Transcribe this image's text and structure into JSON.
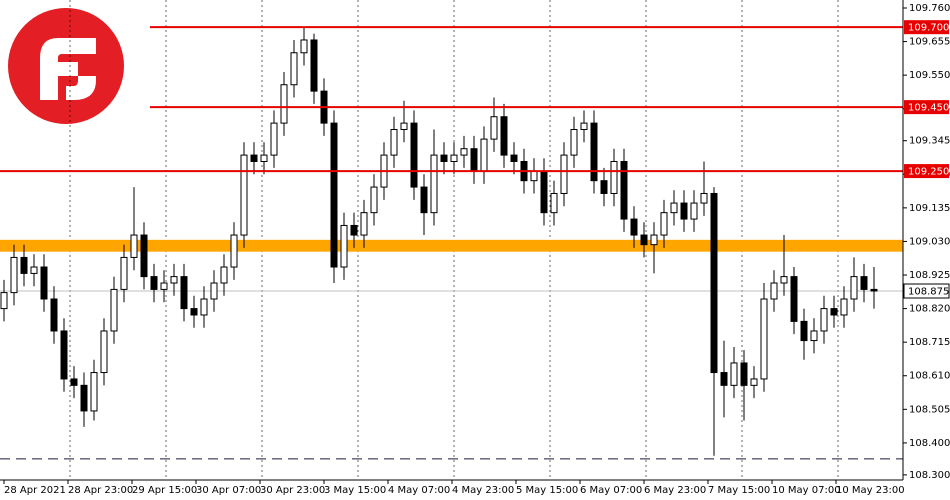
{
  "chart_data": {
    "type": "candlestick",
    "x_labels": [
      "28 Apr 2021",
      "28 Apr 23:00",
      "29 Apr 15:00",
      "30 Apr 07:00",
      "30 Apr 23:00",
      "3 May 15:00",
      "4 May 07:00",
      "4 May 23:00",
      "5 May 15:00",
      "6 May 07:00",
      "6 May 23:00",
      "7 May 15:00",
      "10 May 07:00",
      "10 May 23:00"
    ],
    "open": [
      108.82,
      108.87,
      108.98,
      108.93,
      108.95,
      108.85,
      108.75,
      108.6,
      108.58,
      108.5,
      108.62,
      108.75,
      108.88,
      108.98,
      109.05,
      108.92,
      108.88,
      108.9,
      108.92,
      108.82,
      108.8,
      108.85,
      108.9,
      108.95,
      109.05,
      109.3,
      109.28,
      109.3,
      109.4,
      109.52,
      109.62,
      109.66,
      109.5,
      109.4,
      108.95,
      109.08,
      109.05,
      109.12,
      109.2,
      109.3,
      109.38,
      109.4,
      109.2,
      109.12,
      109.3,
      109.28,
      109.3,
      109.32,
      109.25,
      109.35,
      109.42,
      109.3,
      109.28,
      109.22,
      109.25,
      109.12,
      109.18,
      109.3,
      109.38,
      109.4,
      109.22,
      109.18,
      109.28,
      109.1,
      109.05,
      109.02,
      109.05,
      109.12,
      109.15,
      109.1,
      109.15,
      109.18,
      108.62,
      108.58,
      108.65,
      108.58,
      108.6,
      108.85,
      108.9,
      108.92,
      108.78,
      108.72,
      108.75,
      108.82,
      108.8,
      108.85,
      108.92,
      108.88
    ],
    "high": [
      108.91,
      109.02,
      109.02,
      108.99,
      108.99,
      108.89,
      108.79,
      108.64,
      108.62,
      108.66,
      108.79,
      108.92,
      109.02,
      109.2,
      109.09,
      108.96,
      108.94,
      108.96,
      108.96,
      108.86,
      108.89,
      108.94,
      108.99,
      109.09,
      109.34,
      109.34,
      109.34,
      109.44,
      109.56,
      109.66,
      109.7,
      109.68,
      109.54,
      109.44,
      109.12,
      109.12,
      109.16,
      109.24,
      109.34,
      109.42,
      109.47,
      109.44,
      109.24,
      109.38,
      109.34,
      109.34,
      109.36,
      109.36,
      109.39,
      109.48,
      109.46,
      109.34,
      109.32,
      109.29,
      109.29,
      109.22,
      109.34,
      109.42,
      109.44,
      109.44,
      109.26,
      109.32,
      109.32,
      109.14,
      109.09,
      109.09,
      109.16,
      109.19,
      109.19,
      109.19,
      109.28,
      109.2,
      108.72,
      108.7,
      108.69,
      108.64,
      108.9,
      108.94,
      109.05,
      108.95,
      108.82,
      108.79,
      108.86,
      108.86,
      108.89,
      108.98,
      108.96,
      108.95
    ],
    "low": [
      108.78,
      108.83,
      108.89,
      108.89,
      108.81,
      108.71,
      108.56,
      108.54,
      108.45,
      108.47,
      108.58,
      108.71,
      108.84,
      108.94,
      108.88,
      108.84,
      108.84,
      108.86,
      108.78,
      108.76,
      108.76,
      108.81,
      108.86,
      108.91,
      109.01,
      109.24,
      109.24,
      109.26,
      109.36,
      109.48,
      109.58,
      109.46,
      109.36,
      108.9,
      108.91,
      109.01,
      109.01,
      109.08,
      109.16,
      109.26,
      109.34,
      109.16,
      109.05,
      109.08,
      109.24,
      109.24,
      109.26,
      109.21,
      109.21,
      109.31,
      109.26,
      109.24,
      109.18,
      109.18,
      109.08,
      109.08,
      109.14,
      109.26,
      109.34,
      109.18,
      109.14,
      109.14,
      109.06,
      109.01,
      108.98,
      108.93,
      109.01,
      109.08,
      109.06,
      109.06,
      109.11,
      108.36,
      108.48,
      108.54,
      108.47,
      108.54,
      108.56,
      108.81,
      108.86,
      108.74,
      108.66,
      108.68,
      108.71,
      108.76,
      108.76,
      108.81,
      108.84,
      108.82
    ],
    "close": [
      108.87,
      108.98,
      108.93,
      108.95,
      108.85,
      108.75,
      108.6,
      108.58,
      108.5,
      108.62,
      108.75,
      108.88,
      108.98,
      109.05,
      108.92,
      108.88,
      108.9,
      108.92,
      108.82,
      108.8,
      108.85,
      108.9,
      108.95,
      109.05,
      109.3,
      109.28,
      109.3,
      109.4,
      109.52,
      109.62,
      109.66,
      109.5,
      109.4,
      108.95,
      109.08,
      109.05,
      109.12,
      109.2,
      109.3,
      109.38,
      109.4,
      109.2,
      109.12,
      109.3,
      109.28,
      109.3,
      109.32,
      109.25,
      109.35,
      109.42,
      109.3,
      109.28,
      109.22,
      109.25,
      109.12,
      109.18,
      109.3,
      109.38,
      109.4,
      109.22,
      109.18,
      109.28,
      109.1,
      109.05,
      109.02,
      109.05,
      109.12,
      109.15,
      109.1,
      109.15,
      109.18,
      108.62,
      108.58,
      108.65,
      108.58,
      108.6,
      108.85,
      108.9,
      108.92,
      108.78,
      108.72,
      108.75,
      108.82,
      108.8,
      108.85,
      108.92,
      108.88,
      108.875
    ],
    "ylim": [
      108.284,
      109.785
    ],
    "yticks": [
      {
        "value": 109.76,
        "label": "109.760"
      },
      {
        "value": 109.655,
        "label": "109.655"
      },
      {
        "value": 109.55,
        "label": "109.550"
      },
      {
        "value": 109.445,
        "label": "109.445"
      },
      {
        "value": 109.345,
        "label": "109.345"
      },
      {
        "value": 109.24,
        "label": "109.240"
      },
      {
        "value": 109.135,
        "label": "109.135"
      },
      {
        "value": 109.03,
        "label": "109.030"
      },
      {
        "value": 108.925,
        "label": "108.925"
      },
      {
        "value": 108.82,
        "label": "108.820"
      },
      {
        "value": 108.715,
        "label": "108.715"
      },
      {
        "value": 108.61,
        "label": "108.610"
      },
      {
        "value": 108.505,
        "label": "108.505"
      },
      {
        "value": 108.4,
        "label": "108.400"
      },
      {
        "value": 108.3,
        "label": "108.300"
      }
    ],
    "levels": [
      {
        "value": 109.7,
        "label": "109.700"
      },
      {
        "value": 109.45,
        "label": "109.450"
      },
      {
        "value": 109.25,
        "label": "109.250"
      }
    ],
    "level_color": "#e60000",
    "current_price": {
      "value": 108.875,
      "label": "108.875"
    },
    "zone": [
      108.998,
      109.035
    ],
    "zone_color": "#ffa500",
    "support_line": 108.35
  }
}
